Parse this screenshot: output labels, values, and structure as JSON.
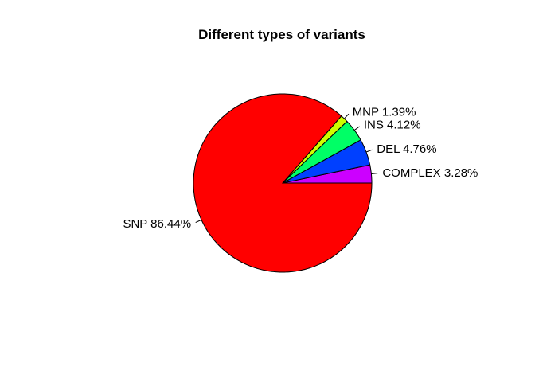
{
  "chart_data": {
    "type": "pie",
    "title": "Different types of variants",
    "start_angle_deg": 0,
    "direction": "counterclockwise",
    "slices": [
      {
        "label": "COMPLEX 3.28%",
        "value": 3.28,
        "color": "#CC00FF"
      },
      {
        "label": "DEL 4.76%",
        "value": 4.76,
        "color": "#0040FF"
      },
      {
        "label": "INS 4.12%",
        "value": 4.12,
        "color": "#00FF66"
      },
      {
        "label": "MNP 1.39%",
        "value": 1.39,
        "color": "#CCFF00"
      },
      {
        "label": "SNP 86.44%",
        "value": 86.44,
        "color": "#FF0000"
      }
    ]
  }
}
